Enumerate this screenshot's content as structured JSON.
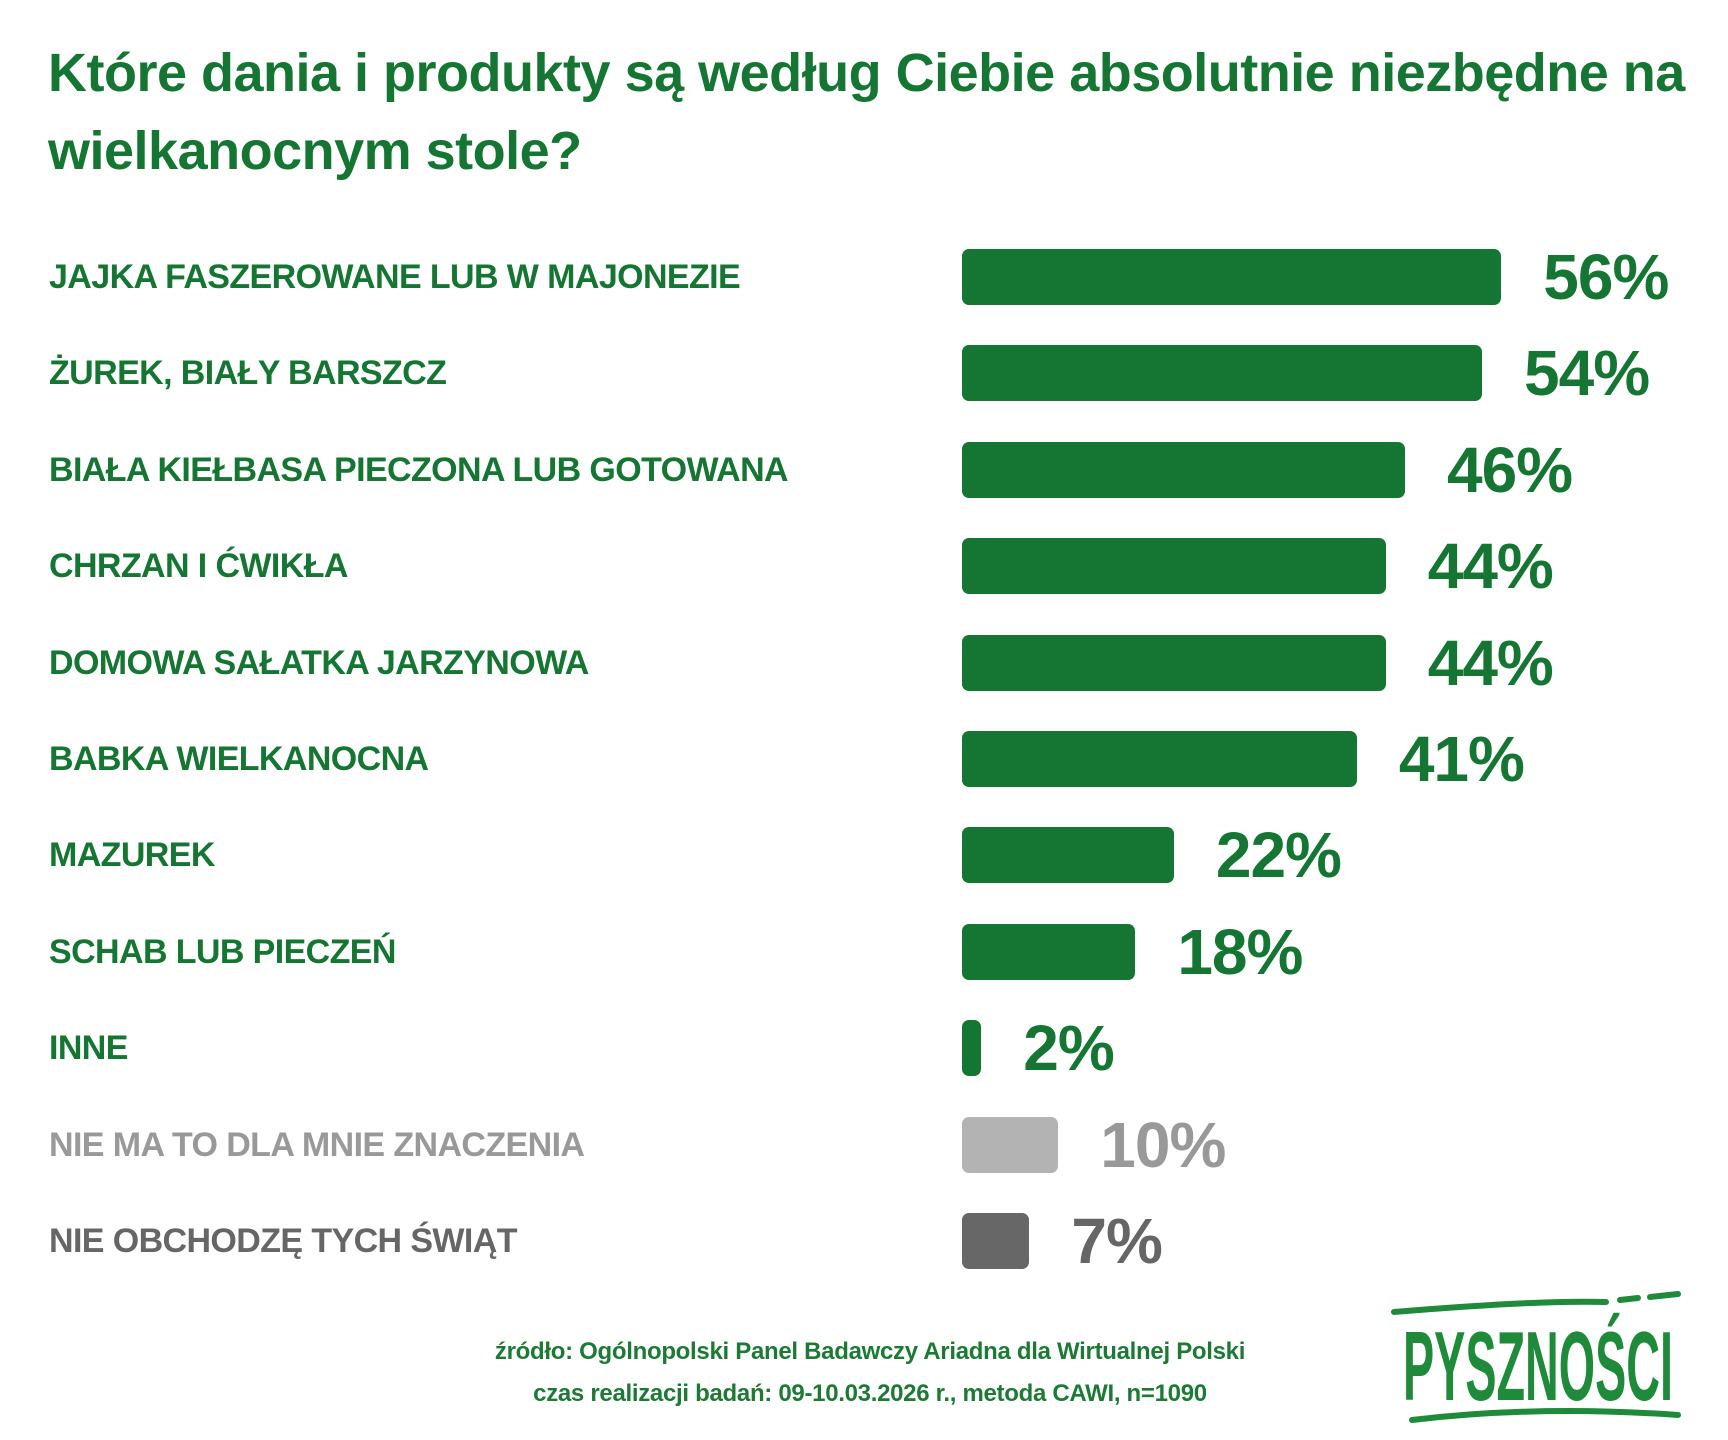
{
  "chart_data": {
    "type": "bar",
    "orientation": "horizontal",
    "title": "Które dania i produkty są według Ciebie absolutnie niezbędne na wielkanocnym stole?",
    "categories": [
      "JAJKA FASZEROWANE LUB W MAJONEZIE",
      "ŻUREK, BIAŁY BARSZCZ",
      "BIAŁA KIEŁBASA PIECZONA LUB GOTOWANA",
      "CHRZAN I ĆWIKŁA",
      "DOMOWA SAŁATKA JARZYNOWA",
      "BABKA WIELKANOCNA",
      "MAZUREK",
      "SCHAB LUB PIECZEŃ",
      "INNE",
      "NIE MA TO DLA MNIE ZNACZENIA",
      "NIE OBCHODZĘ TYCH ŚWIĄT"
    ],
    "values": [
      56,
      54,
      46,
      44,
      44,
      41,
      22,
      18,
      2,
      10,
      7
    ],
    "value_labels": [
      "56%",
      "54%",
      "46%",
      "44%",
      "44%",
      "41%",
      "22%",
      "18%",
      "2%",
      "10%",
      "7%"
    ],
    "bar_colors": [
      "#157532",
      "#157532",
      "#157532",
      "#157532",
      "#157532",
      "#157532",
      "#157532",
      "#157532",
      "#157532",
      "#b3b3b3",
      "#676767"
    ],
    "text_colors": [
      "#157532",
      "#157532",
      "#157532",
      "#157532",
      "#157532",
      "#157532",
      "#157532",
      "#157532",
      "#157532",
      "#999999",
      "#666666"
    ],
    "unit": "%",
    "grid": false,
    "axes_visible": false
  },
  "footer": {
    "source": "źródło: Ogólnopolski Panel Badawczy Ariadna dla Wirtualnej Polski",
    "method": "czas realizacji badań: 09-10.03.2026 r., metoda CAWI, n=1090"
  },
  "logo": {
    "text": "PYSZNOŚCI"
  },
  "colors": {
    "accent": "#157532"
  }
}
